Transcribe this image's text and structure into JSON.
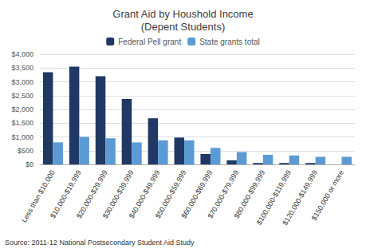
{
  "chart_data": {
    "type": "bar",
    "title": "Grant Aid by Houshold Income\n(Depent Students)",
    "annotations": [
      "Source: 2011-12 National Postsecondary Student Aid Study"
    ],
    "categories": [
      "Less than $10,000",
      "$10,000-$19,999",
      "$20,000-$29,999",
      "$30,000-$39,999",
      "$40,000-$49,999",
      "$50,000-$59,999",
      "$60,000-$69,999",
      "$70,000-$79,999",
      "$80,000-$99,999",
      "$100,000-$119,999",
      "$120,000-$149,999",
      "$150,000 or more"
    ],
    "series": [
      {
        "name": "Federal Pell grant",
        "color": "#1F3864",
        "values": [
          3350,
          3550,
          3200,
          2375,
          1675,
          975,
          375,
          150,
          50,
          50,
          50,
          0
        ]
      },
      {
        "name": "State grants total",
        "color": "#5B9BD5",
        "values": [
          800,
          1000,
          950,
          800,
          875,
          875,
          600,
          450,
          350,
          325,
          275,
          275
        ]
      }
    ],
    "ylim": [
      0,
      4000
    ],
    "yticks": [
      {
        "value": 0,
        "label": "$0"
      },
      {
        "value": 500,
        "label": "$500"
      },
      {
        "value": 1000,
        "label": "$1,000"
      },
      {
        "value": 1500,
        "label": "$1,500"
      },
      {
        "value": 2000,
        "label": "$2,000"
      },
      {
        "value": 2500,
        "label": "$2,500"
      },
      {
        "value": 3000,
        "label": "$3,000"
      },
      {
        "value": 3500,
        "label": "$3,500"
      },
      {
        "value": 4000,
        "label": "$4,000"
      }
    ],
    "grid": true,
    "legend": "top"
  }
}
